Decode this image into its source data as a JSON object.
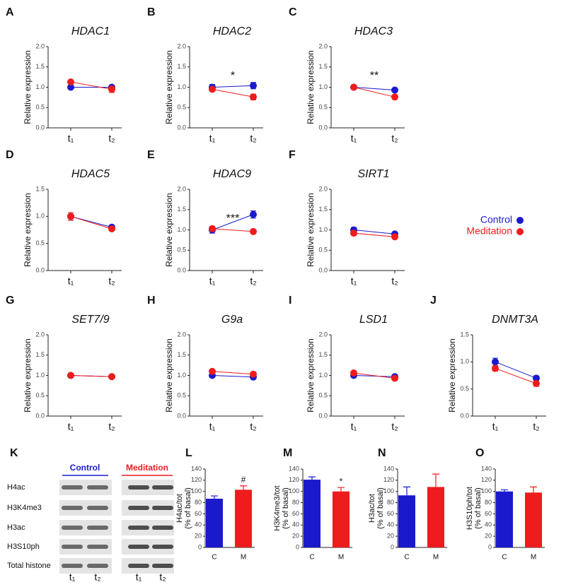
{
  "chart_data": [
    {
      "type": "line",
      "panel": "A",
      "title": "HDAC1",
      "y_label": "Relative expression",
      "categories": [
        "t₁",
        "t₂"
      ],
      "ylim": [
        0,
        2
      ],
      "yticks": [
        {
          "value": 0,
          "label": "0.0"
        },
        {
          "value": 0.5,
          "label": "0.5"
        },
        {
          "value": 1,
          "label": "1.0"
        },
        {
          "value": 1.5,
          "label": "1.5"
        },
        {
          "value": 2,
          "label": "2.0"
        }
      ],
      "series": [
        {
          "name": "Control",
          "color": "#1a1acc",
          "values": [
            1.0,
            1.0
          ],
          "errors": [
            0.03,
            0.05
          ]
        },
        {
          "name": "Meditation",
          "color": "#ee1c1c",
          "values": [
            1.13,
            0.95
          ],
          "errors": [
            0.03,
            0.08
          ]
        }
      ]
    },
    {
      "type": "line",
      "panel": "B",
      "title": "HDAC2",
      "y_label": "Relative expression",
      "categories": [
        "t₁",
        "t₂"
      ],
      "ylim": [
        0,
        2
      ],
      "yticks": [
        {
          "value": 0,
          "label": "0.0"
        },
        {
          "value": 0.5,
          "label": "0.5"
        },
        {
          "value": 1,
          "label": "1.0"
        },
        {
          "value": 1.5,
          "label": "1.5"
        },
        {
          "value": 2,
          "label": "2.0"
        }
      ],
      "series": [
        {
          "name": "Control",
          "color": "#1a1acc",
          "values": [
            1.0,
            1.04
          ],
          "errors": [
            0.07,
            0.08
          ]
        },
        {
          "name": "Meditation",
          "color": "#ee1c1c",
          "values": [
            0.95,
            0.76
          ],
          "errors": [
            0.04,
            0.07
          ]
        }
      ],
      "annotation": "*"
    },
    {
      "type": "line",
      "panel": "C",
      "title": "HDAC3",
      "y_label": "Relative expression",
      "categories": [
        "t₁",
        "t₂"
      ],
      "ylim": [
        0,
        2
      ],
      "yticks": [
        {
          "value": 0,
          "label": "0.0"
        },
        {
          "value": 0.5,
          "label": "0.5"
        },
        {
          "value": 1,
          "label": "1.0"
        },
        {
          "value": 1.5,
          "label": "1.5"
        },
        {
          "value": 2,
          "label": "2.0"
        }
      ],
      "series": [
        {
          "name": "Control",
          "color": "#1a1acc",
          "values": [
            1.0,
            0.93
          ],
          "errors": [
            0.02,
            0.03
          ]
        },
        {
          "name": "Meditation",
          "color": "#ee1c1c",
          "values": [
            1.0,
            0.76
          ],
          "errors": [
            0.02,
            0.03
          ]
        }
      ],
      "annotation": "**"
    },
    {
      "type": "line",
      "panel": "D",
      "title": "HDAC5",
      "y_label": "Relative expression",
      "categories": [
        "t₁",
        "t₂"
      ],
      "ylim": [
        0,
        1.5
      ],
      "yticks": [
        {
          "value": 0,
          "label": "0.0"
        },
        {
          "value": 0.5,
          "label": "0.5"
        },
        {
          "value": 1,
          "label": "1.0"
        },
        {
          "value": 1.5,
          "label": "1.5"
        }
      ],
      "series": [
        {
          "name": "Control",
          "color": "#1a1acc",
          "values": [
            1.0,
            0.8
          ],
          "errors": [
            0.07,
            0.03
          ]
        },
        {
          "name": "Meditation",
          "color": "#ee1c1c",
          "values": [
            1.0,
            0.77
          ],
          "errors": [
            0.07,
            0.03
          ]
        }
      ]
    },
    {
      "type": "line",
      "panel": "E",
      "title": "HDAC9",
      "y_label": "Relative expression",
      "categories": [
        "t₁",
        "t₂"
      ],
      "ylim": [
        0,
        2
      ],
      "yticks": [
        {
          "value": 0,
          "label": "0.0"
        },
        {
          "value": 0.5,
          "label": "0.5"
        },
        {
          "value": 1,
          "label": "1.0"
        },
        {
          "value": 1.5,
          "label": "1.5"
        },
        {
          "value": 2,
          "label": "2.0"
        }
      ],
      "series": [
        {
          "name": "Control",
          "color": "#1a1acc",
          "values": [
            1.0,
            1.38
          ],
          "errors": [
            0.08,
            0.09
          ]
        },
        {
          "name": "Meditation",
          "color": "#ee1c1c",
          "values": [
            1.03,
            0.96
          ],
          "errors": [
            0.06,
            0.03
          ]
        }
      ],
      "annotation": "***"
    },
    {
      "type": "line",
      "panel": "F",
      "title": "SIRT1",
      "y_label": "Relative expression",
      "categories": [
        "t₁",
        "t₂"
      ],
      "ylim": [
        0,
        2
      ],
      "yticks": [
        {
          "value": 0,
          "label": "0.0"
        },
        {
          "value": 0.5,
          "label": "0.5"
        },
        {
          "value": 1,
          "label": "1.0"
        },
        {
          "value": 1.5,
          "label": "1.5"
        },
        {
          "value": 2,
          "label": "2.0"
        }
      ],
      "series": [
        {
          "name": "Control",
          "color": "#1a1acc",
          "values": [
            1.0,
            0.9
          ],
          "errors": [
            0.06,
            0.03
          ]
        },
        {
          "name": "Meditation",
          "color": "#ee1c1c",
          "values": [
            0.92,
            0.83
          ],
          "errors": [
            0.04,
            0.03
          ]
        }
      ]
    },
    {
      "type": "line",
      "panel": "G",
      "title": "SET7/9",
      "y_label": "Relative expression",
      "categories": [
        "t₁",
        "t₂"
      ],
      "ylim": [
        0,
        2
      ],
      "yticks": [
        {
          "value": 0,
          "label": "0.0"
        },
        {
          "value": 0.5,
          "label": "0.5"
        },
        {
          "value": 1,
          "label": "1.0"
        },
        {
          "value": 1.5,
          "label": "1.5"
        },
        {
          "value": 2,
          "label": "2.0"
        }
      ],
      "series": [
        {
          "name": "Control",
          "color": "#1a1acc",
          "values": [
            1.0,
            0.97
          ],
          "errors": [
            0.02,
            0.02
          ]
        },
        {
          "name": "Meditation",
          "color": "#ee1c1c",
          "values": [
            1.0,
            0.97
          ],
          "errors": [
            0.02,
            0.02
          ]
        }
      ]
    },
    {
      "type": "line",
      "panel": "H",
      "title": "G9a",
      "y_label": "Relative expression",
      "categories": [
        "t₁",
        "t₂"
      ],
      "ylim": [
        0,
        2
      ],
      "yticks": [
        {
          "value": 0,
          "label": "0.0"
        },
        {
          "value": 0.5,
          "label": "0.5"
        },
        {
          "value": 1,
          "label": "1.0"
        },
        {
          "value": 1.5,
          "label": "1.5"
        },
        {
          "value": 2,
          "label": "2.0"
        }
      ],
      "series": [
        {
          "name": "Control",
          "color": "#1a1acc",
          "values": [
            1.0,
            0.96
          ],
          "errors": [
            0.03,
            0.03
          ]
        },
        {
          "name": "Meditation",
          "color": "#ee1c1c",
          "values": [
            1.1,
            1.03
          ],
          "errors": [
            0.03,
            0.03
          ]
        }
      ]
    },
    {
      "type": "line",
      "panel": "I",
      "title": "LSD1",
      "y_label": "Relative expression",
      "categories": [
        "t₁",
        "t₂"
      ],
      "ylim": [
        0,
        2
      ],
      "yticks": [
        {
          "value": 0,
          "label": "0.0"
        },
        {
          "value": 0.5,
          "label": "0.5"
        },
        {
          "value": 1,
          "label": "1.0"
        },
        {
          "value": 1.5,
          "label": "1.5"
        },
        {
          "value": 2,
          "label": "2.0"
        }
      ],
      "series": [
        {
          "name": "Control",
          "color": "#1a1acc",
          "values": [
            1.0,
            0.97
          ],
          "errors": [
            0.03,
            0.03
          ]
        },
        {
          "name": "Meditation",
          "color": "#ee1c1c",
          "values": [
            1.06,
            0.93
          ],
          "errors": [
            0.03,
            0.03
          ]
        }
      ]
    },
    {
      "type": "line",
      "panel": "J",
      "title": "DNMT3A",
      "y_label": "Relative expression",
      "categories": [
        "t₁",
        "t₂"
      ],
      "ylim": [
        0,
        1.5
      ],
      "yticks": [
        {
          "value": 0,
          "label": "0.0"
        },
        {
          "value": 0.5,
          "label": "0.5"
        },
        {
          "value": 1,
          "label": "1.0"
        },
        {
          "value": 1.5,
          "label": "1.5"
        }
      ],
      "series": [
        {
          "name": "Control",
          "color": "#1a1acc",
          "values": [
            1.0,
            0.7
          ],
          "errors": [
            0.07,
            0.04
          ]
        },
        {
          "name": "Meditation",
          "color": "#ee1c1c",
          "values": [
            0.88,
            0.6
          ],
          "errors": [
            0.05,
            0.05
          ]
        }
      ]
    },
    {
      "type": "bar",
      "panel": "L",
      "y_label": [
        "H4ac/tot",
        "(% of basal)"
      ],
      "categories": [
        "C",
        "M"
      ],
      "colors": [
        "#1a1acc",
        "#ee1c1c"
      ],
      "values": [
        87,
        103
      ],
      "errors": [
        5,
        7
      ],
      "annotations": [
        null,
        "#"
      ],
      "ylim": [
        0,
        140
      ],
      "yticks": [
        0,
        20,
        40,
        60,
        80,
        100,
        120,
        140
      ]
    },
    {
      "type": "bar",
      "panel": "M",
      "y_label": [
        "H3K4me3/tot",
        "(% of basal)"
      ],
      "categories": [
        "C",
        "M"
      ],
      "colors": [
        "#1a1acc",
        "#ee1c1c"
      ],
      "values": [
        121,
        100
      ],
      "errors": [
        5,
        7
      ],
      "annotations": [
        null,
        "*"
      ],
      "ylim": [
        0,
        140
      ],
      "yticks": [
        0,
        20,
        40,
        60,
        80,
        100,
        120,
        140
      ]
    },
    {
      "type": "bar",
      "panel": "N",
      "y_label": [
        "H3ac/tot",
        "(% of basal)"
      ],
      "categories": [
        "C",
        "M"
      ],
      "colors": [
        "#1a1acc",
        "#ee1c1c"
      ],
      "values": [
        93,
        108
      ],
      "errors": [
        15,
        23
      ],
      "ylim": [
        0,
        140
      ],
      "yticks": [
        0,
        20,
        40,
        60,
        80,
        100,
        120,
        140
      ]
    },
    {
      "type": "bar",
      "panel": "O",
      "y_label": [
        "H3S10ph/tot",
        "(% of basal)"
      ],
      "categories": [
        "C",
        "M"
      ],
      "colors": [
        "#1a1acc",
        "#ee1c1c"
      ],
      "values": [
        100,
        98
      ],
      "errors": [
        3,
        10
      ],
      "ylim": [
        0,
        140
      ],
      "yticks": [
        0,
        20,
        40,
        60,
        80,
        100,
        120,
        140
      ]
    }
  ],
  "blot": {
    "panel": "K",
    "groups": [
      "Control",
      "Meditation"
    ],
    "rows": [
      "H4ac",
      "H3K4me3",
      "H3ac",
      "H3S10ph",
      "Total histone"
    ],
    "lanes": [
      "t₁",
      "t₂",
      "t₁",
      "t₂"
    ]
  }
}
